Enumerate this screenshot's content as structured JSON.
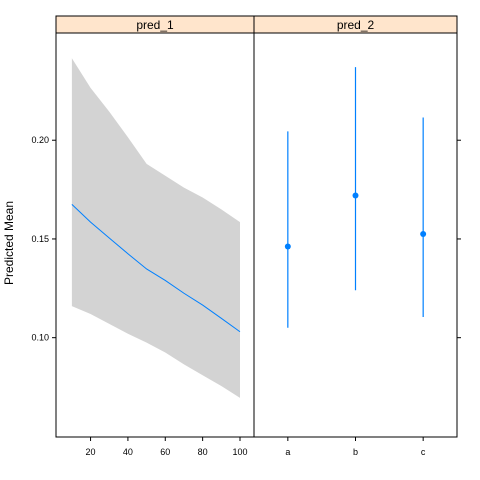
{
  "chart_data": {
    "type": "line",
    "ylabel": "Predicted Mean",
    "ylim": [
      0.0497,
      0.2543
    ],
    "yticks": [
      0.1,
      0.15,
      0.2
    ],
    "ytick_labels": [
      "0.10",
      "0.15",
      "0.20"
    ],
    "colors": {
      "strip_fill": "#ffe5cc",
      "band": "#d3d3d3",
      "line": "#0080ff",
      "point": "#0080ff"
    },
    "panels": [
      {
        "strip": "pred_1",
        "type": "area",
        "xlim": [
          1.5,
          107.5
        ],
        "xticks": [
          20,
          40,
          60,
          80,
          100
        ],
        "xtick_labels": [
          "20",
          "40",
          "60",
          "80",
          "100"
        ],
        "fit": {
          "x": [
            10,
            20,
            30,
            40,
            50,
            60,
            70,
            80,
            90,
            100
          ],
          "y": [
            0.1675,
            0.1585,
            0.1505,
            0.1425,
            0.1348,
            0.129,
            0.1225,
            0.1165,
            0.1098,
            0.103
          ]
        },
        "upper": {
          "x": [
            10,
            20,
            30,
            40,
            50,
            60,
            70,
            80,
            90,
            100
          ],
          "y": [
            0.2415,
            0.2265,
            0.2145,
            0.2015,
            0.188,
            0.182,
            0.176,
            0.171,
            0.165,
            0.1585
          ]
        },
        "lower": {
          "x": [
            10,
            20,
            30,
            40,
            50,
            60,
            70,
            80,
            90,
            100
          ],
          "y": [
            0.116,
            0.112,
            0.107,
            0.102,
            0.0975,
            0.0925,
            0.0865,
            0.081,
            0.0755,
            0.0695
          ]
        }
      },
      {
        "strip": "pred_2",
        "type": "scatter",
        "categories": [
          "a",
          "b",
          "c"
        ],
        "means": [
          0.1462,
          0.172,
          0.1525
        ],
        "lower": [
          0.105,
          0.124,
          0.1105
        ],
        "upper": [
          0.2045,
          0.237,
          0.2115
        ]
      }
    ]
  }
}
